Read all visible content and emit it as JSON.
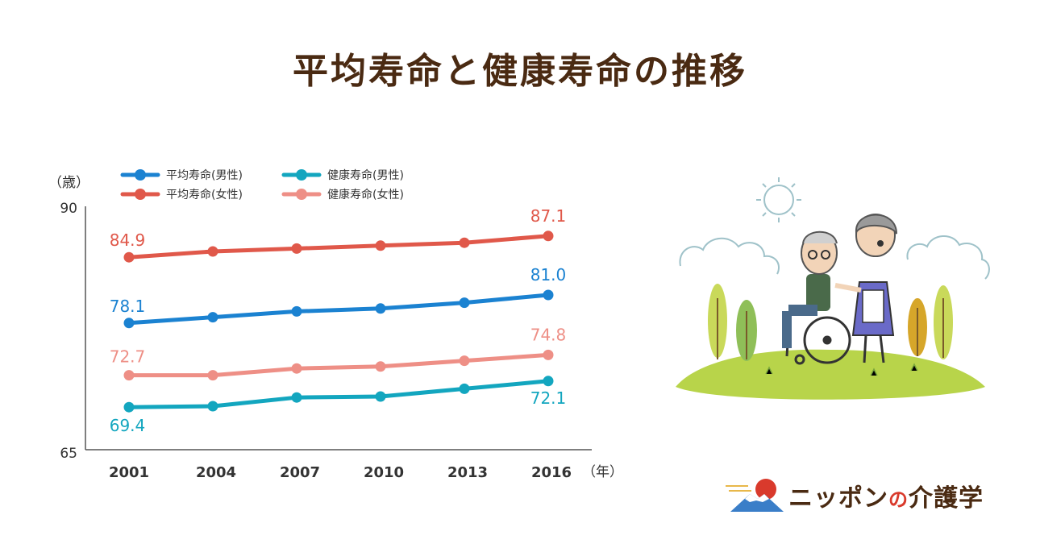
{
  "title": "平均寿命と健康寿命の推移",
  "brand": {
    "part1": "ニッポン",
    "part2": "の",
    "part3": "介護学"
  },
  "colors": {
    "male_life": "#1b82d1",
    "female_life": "#e0584a",
    "male_health": "#13a6bf",
    "female_health": "#ee8f86",
    "title": "#4a2a12"
  },
  "chart_data": {
    "type": "line",
    "y_unit_label": "（歳）",
    "x_unit_label": "（年）",
    "ylim": [
      65,
      90
    ],
    "yticks": [
      "90",
      "65"
    ],
    "categories": [
      "2001",
      "2004",
      "2007",
      "2010",
      "2013",
      "2016"
    ],
    "legend_position": "top-left",
    "grid": false,
    "series": [
      {
        "name": "平均寿命(男性)",
        "color": "#1b82d1",
        "values": [
          78.1,
          78.7,
          79.3,
          79.6,
          80.2,
          81.0
        ],
        "labels": [
          "78.1",
          "",
          "",
          "",
          "",
          "81.0"
        ]
      },
      {
        "name": "平均寿命(女性)",
        "color": "#e0584a",
        "values": [
          84.9,
          85.5,
          85.8,
          86.1,
          86.4,
          87.1
        ],
        "labels": [
          "84.9",
          "",
          "",
          "",
          "",
          "87.1"
        ]
      },
      {
        "name": "健康寿命(男性)",
        "color": "#13a6bf",
        "values": [
          69.4,
          69.5,
          70.4,
          70.5,
          71.3,
          72.1
        ],
        "labels": [
          "69.4",
          "",
          "",
          "",
          "",
          "72.1"
        ]
      },
      {
        "name": "健康寿命(女性)",
        "color": "#ee8f86",
        "values": [
          72.7,
          72.7,
          73.4,
          73.6,
          74.2,
          74.8
        ],
        "labels": [
          "72.7",
          "",
          "",
          "",
          "",
          "74.8"
        ]
      }
    ]
  }
}
